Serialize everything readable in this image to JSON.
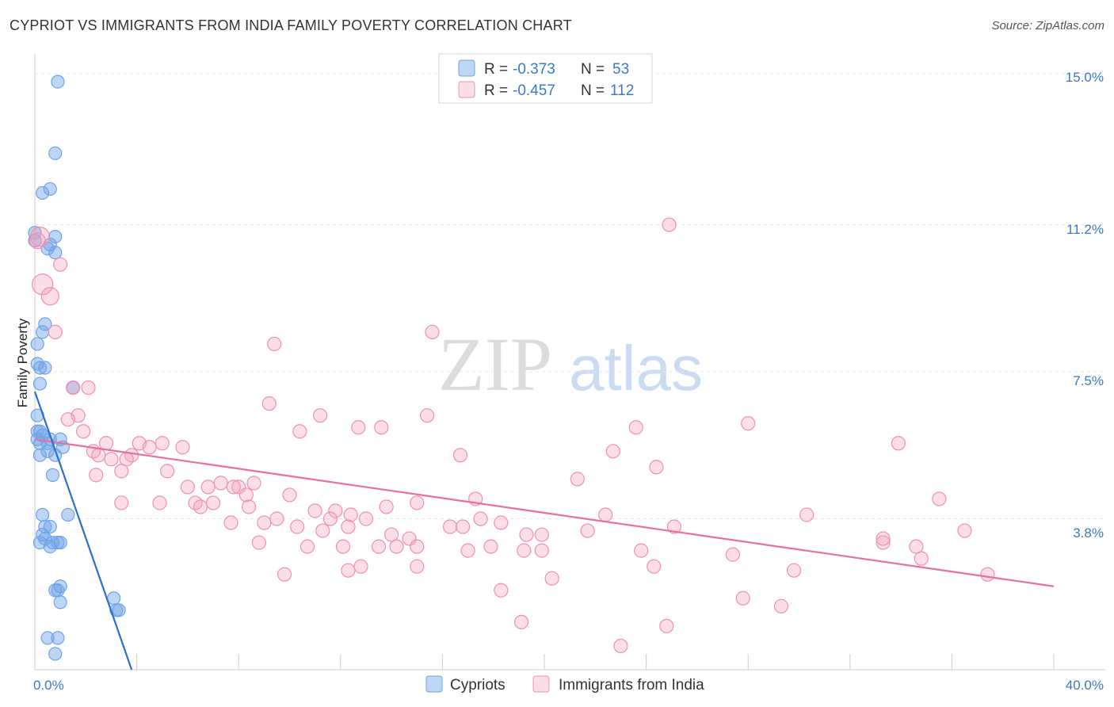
{
  "title": "CYPRIOT VS IMMIGRANTS FROM INDIA FAMILY POVERTY CORRELATION CHART",
  "source": "Source: ZipAtlas.com",
  "watermark": {
    "zip": "ZIP",
    "atlas": "atlas"
  },
  "colors": {
    "blue": "#6fa3e8",
    "blue_fill": "rgba(111,163,232,0.45)",
    "blue_line": "#2b6fd1",
    "pink": "#f08fb0",
    "pink_fill": "rgba(244,160,189,0.35)",
    "pink_line": "#e8709c",
    "grid": "#e6e6e6",
    "axis_text": "#3a78c9"
  },
  "chart_data": {
    "type": "scatter",
    "title": "CYPRIOT VS IMMIGRANTS FROM INDIA FAMILY POVERTY CORRELATION CHART",
    "ylabel": "Family Poverty",
    "xlabel": "",
    "xlim": [
      0,
      40
    ],
    "ylim": [
      0,
      15.5
    ],
    "x_tick_labels": [
      "0.0%",
      "40.0%"
    ],
    "y_ticks": [
      3.8,
      7.5,
      11.2,
      15.0
    ],
    "y_tick_labels": [
      "3.8%",
      "7.5%",
      "11.2%",
      "15.0%"
    ],
    "legend": {
      "position": "top-center",
      "entries": [
        {
          "r_label": "R =",
          "r_value": "-0.373",
          "n_label": "N =",
          "n_value": "53"
        },
        {
          "r_label": "R =",
          "r_value": "-0.457",
          "n_label": "N =",
          "n_value": "112"
        }
      ]
    },
    "series": [
      {
        "name": "Cypriots",
        "color": "#6fa3e8",
        "trend": {
          "x": [
            0.0,
            3.8
          ],
          "y": [
            7.0,
            0.0
          ]
        },
        "points": [
          [
            0.9,
            14.8
          ],
          [
            0.8,
            13.0
          ],
          [
            0.6,
            12.1
          ],
          [
            0.3,
            12.0
          ],
          [
            0.0,
            11.0
          ],
          [
            0.8,
            10.9
          ],
          [
            0.0,
            10.8
          ],
          [
            0.5,
            10.6
          ],
          [
            0.8,
            10.5
          ],
          [
            0.4,
            8.7
          ],
          [
            0.3,
            8.5
          ],
          [
            0.1,
            8.2
          ],
          [
            0.1,
            7.7
          ],
          [
            0.2,
            7.6
          ],
          [
            0.2,
            7.2
          ],
          [
            1.5,
            7.1
          ],
          [
            0.1,
            6.4
          ],
          [
            0.1,
            6.0
          ],
          [
            0.3,
            5.9
          ],
          [
            0.6,
            5.8
          ],
          [
            1.0,
            5.8
          ],
          [
            0.2,
            5.7
          ],
          [
            0.5,
            5.7
          ],
          [
            1.1,
            5.6
          ],
          [
            0.5,
            5.5
          ],
          [
            0.8,
            5.4
          ],
          [
            0.2,
            5.4
          ],
          [
            0.7,
            4.9
          ],
          [
            1.3,
            3.9
          ],
          [
            0.3,
            3.9
          ],
          [
            0.4,
            3.6
          ],
          [
            0.6,
            3.6
          ],
          [
            0.3,
            3.4
          ],
          [
            0.4,
            3.3
          ],
          [
            0.7,
            3.2
          ],
          [
            0.9,
            3.2
          ],
          [
            1.0,
            3.2
          ],
          [
            0.2,
            3.2
          ],
          [
            0.6,
            3.1
          ],
          [
            1.0,
            2.1
          ],
          [
            0.9,
            2.0
          ],
          [
            0.8,
            2.0
          ],
          [
            1.0,
            1.7
          ],
          [
            3.1,
            1.8
          ],
          [
            3.3,
            1.5
          ],
          [
            3.2,
            1.5
          ],
          [
            0.5,
            0.8
          ],
          [
            0.9,
            0.8
          ],
          [
            0.8,
            0.4
          ],
          [
            0.1,
            5.8
          ],
          [
            0.2,
            6.0
          ],
          [
            0.4,
            7.6
          ],
          [
            0.6,
            10.7
          ]
        ]
      },
      {
        "name": "Immigrants from India",
        "color": "#f08fb0",
        "trend": {
          "x": [
            0.0,
            40.0
          ],
          "y": [
            5.8,
            2.1
          ]
        },
        "points": [
          [
            0.2,
            10.9
          ],
          [
            0.1,
            10.8
          ],
          [
            1.0,
            10.2
          ],
          [
            0.3,
            9.7
          ],
          [
            0.6,
            9.4
          ],
          [
            0.8,
            8.5
          ],
          [
            24.9,
            11.2
          ],
          [
            15.6,
            8.5
          ],
          [
            9.4,
            8.2
          ],
          [
            2.1,
            7.1
          ],
          [
            1.5,
            7.1
          ],
          [
            9.2,
            6.7
          ],
          [
            1.7,
            6.4
          ],
          [
            11.2,
            6.4
          ],
          [
            15.4,
            6.4
          ],
          [
            1.3,
            6.3
          ],
          [
            12.7,
            6.1
          ],
          [
            13.6,
            6.1
          ],
          [
            10.4,
            6.0
          ],
          [
            1.9,
            6.0
          ],
          [
            23.6,
            6.1
          ],
          [
            28.0,
            6.2
          ],
          [
            2.8,
            5.7
          ],
          [
            4.1,
            5.7
          ],
          [
            4.5,
            5.6
          ],
          [
            5.0,
            5.7
          ],
          [
            5.8,
            5.6
          ],
          [
            2.3,
            5.5
          ],
          [
            2.5,
            5.4
          ],
          [
            3.8,
            5.4
          ],
          [
            3.0,
            5.3
          ],
          [
            3.6,
            5.3
          ],
          [
            16.7,
            5.4
          ],
          [
            22.7,
            5.5
          ],
          [
            33.9,
            5.7
          ],
          [
            2.4,
            4.9
          ],
          [
            3.4,
            5.0
          ],
          [
            5.2,
            5.0
          ],
          [
            24.4,
            5.1
          ],
          [
            6.0,
            4.6
          ],
          [
            6.8,
            4.6
          ],
          [
            7.3,
            4.7
          ],
          [
            8.0,
            4.6
          ],
          [
            8.6,
            4.7
          ],
          [
            21.3,
            4.8
          ],
          [
            7.8,
            4.6
          ],
          [
            8.3,
            4.4
          ],
          [
            10.0,
            4.4
          ],
          [
            4.9,
            4.2
          ],
          [
            3.4,
            4.2
          ],
          [
            6.3,
            4.2
          ],
          [
            6.5,
            4.1
          ],
          [
            7.0,
            4.2
          ],
          [
            8.4,
            4.1
          ],
          [
            11.0,
            4.0
          ],
          [
            11.8,
            4.0
          ],
          [
            12.4,
            3.9
          ],
          [
            13.8,
            4.1
          ],
          [
            15.0,
            4.2
          ],
          [
            17.3,
            4.3
          ],
          [
            35.5,
            4.3
          ],
          [
            7.7,
            3.7
          ],
          [
            9.0,
            3.7
          ],
          [
            9.5,
            3.8
          ],
          [
            10.3,
            3.6
          ],
          [
            11.3,
            3.5
          ],
          [
            11.6,
            3.8
          ],
          [
            12.3,
            3.6
          ],
          [
            13.0,
            3.8
          ],
          [
            16.3,
            3.6
          ],
          [
            16.8,
            3.6
          ],
          [
            17.5,
            3.8
          ],
          [
            18.3,
            3.7
          ],
          [
            19.3,
            3.4
          ],
          [
            19.9,
            3.4
          ],
          [
            22.4,
            3.9
          ],
          [
            25.1,
            3.6
          ],
          [
            30.3,
            3.9
          ],
          [
            36.5,
            3.5
          ],
          [
            8.8,
            3.2
          ],
          [
            10.7,
            3.1
          ],
          [
            12.1,
            3.1
          ],
          [
            13.5,
            3.1
          ],
          [
            14.2,
            3.1
          ],
          [
            14.7,
            3.3
          ],
          [
            14.0,
            3.4
          ],
          [
            15.0,
            3.1
          ],
          [
            17.0,
            3.0
          ],
          [
            17.9,
            3.1
          ],
          [
            19.2,
            3.0
          ],
          [
            19.9,
            3.0
          ],
          [
            23.8,
            3.0
          ],
          [
            27.4,
            2.9
          ],
          [
            33.3,
            3.2
          ],
          [
            34.6,
            3.1
          ],
          [
            15.0,
            2.6
          ],
          [
            12.3,
            2.5
          ],
          [
            12.8,
            2.6
          ],
          [
            9.8,
            2.4
          ],
          [
            20.3,
            2.3
          ],
          [
            24.3,
            2.6
          ],
          [
            29.8,
            2.5
          ],
          [
            34.8,
            2.8
          ],
          [
            18.3,
            2.0
          ],
          [
            27.8,
            1.8
          ],
          [
            29.3,
            1.6
          ],
          [
            19.1,
            1.2
          ],
          [
            24.8,
            1.1
          ],
          [
            23.0,
            0.6
          ],
          [
            37.4,
            2.4
          ],
          [
            33.3,
            3.3
          ],
          [
            21.7,
            3.5
          ]
        ]
      }
    ]
  }
}
